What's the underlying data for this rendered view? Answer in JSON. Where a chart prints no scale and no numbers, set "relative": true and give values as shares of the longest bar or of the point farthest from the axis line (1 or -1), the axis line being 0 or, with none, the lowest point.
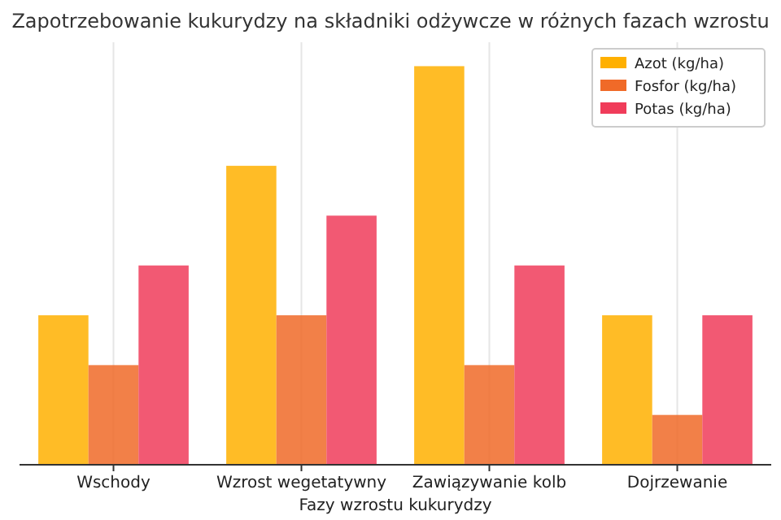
{
  "chart_data": {
    "type": "bar",
    "title": "Zapotrzebowanie kukurydzy na składniki odżywcze w różnych fazach wzrostu",
    "xlabel": "Fazy wzrostu kukurydzy",
    "categories": [
      "Wschody",
      "Wzrost wegetatywny",
      "Zawiązywanie kolb",
      "Dojrzewanie"
    ],
    "relative": true,
    "grid": "x",
    "legend": "top right",
    "series": [
      {
        "name": "Azot (kg/ha)",
        "color": "#ffb000",
        "values": [
          0.375,
          0.75,
          1,
          0.375
        ]
      },
      {
        "name": "Fosfor (kg/ha)",
        "color": "#f06a28",
        "values": [
          0.25,
          0.375,
          0.25,
          0.125
        ]
      },
      {
        "name": "Potas (kg/ha)",
        "color": "#f03c5a",
        "values": [
          0.5,
          0.625,
          0.5,
          0.375
        ]
      }
    ]
  }
}
